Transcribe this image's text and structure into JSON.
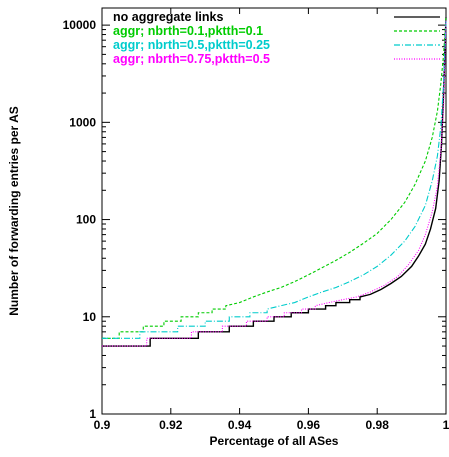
{
  "chart_data": {
    "type": "line",
    "title": "",
    "xlabel": "Percentage of all ASes",
    "ylabel": "Number of forwarding entries per AS",
    "xlim": [
      0.9,
      1.0
    ],
    "ylim": [
      1,
      15000
    ],
    "yscale": "log",
    "grid": false,
    "legend_position": "top-right",
    "x_ticks": [
      {
        "value": 0.9,
        "label": "0.9"
      },
      {
        "value": 0.92,
        "label": "0.92"
      },
      {
        "value": 0.94,
        "label": "0.94"
      },
      {
        "value": 0.96,
        "label": "0.96"
      },
      {
        "value": 0.98,
        "label": "0.98"
      },
      {
        "value": 1.0,
        "label": "1"
      }
    ],
    "y_ticks": [
      {
        "value": 1,
        "label": "1"
      },
      {
        "value": 10,
        "label": "10"
      },
      {
        "value": 100,
        "label": "100"
      },
      {
        "value": 1000,
        "label": "1000"
      },
      {
        "value": 10000,
        "label": "10000"
      }
    ],
    "series": [
      {
        "name": "no aggregate links",
        "color": "#000000",
        "dash": "",
        "points": [
          [
            0.9,
            5
          ],
          [
            0.914,
            5
          ],
          [
            0.914,
            6
          ],
          [
            0.928,
            6
          ],
          [
            0.928,
            7
          ],
          [
            0.937,
            7
          ],
          [
            0.937,
            8
          ],
          [
            0.944,
            8
          ],
          [
            0.944,
            9
          ],
          [
            0.95,
            9
          ],
          [
            0.95,
            10
          ],
          [
            0.955,
            10
          ],
          [
            0.955,
            11
          ],
          [
            0.96,
            11
          ],
          [
            0.96,
            12
          ],
          [
            0.965,
            12
          ],
          [
            0.965,
            13
          ],
          [
            0.968,
            13
          ],
          [
            0.968,
            14
          ],
          [
            0.972,
            14
          ],
          [
            0.972,
            15
          ],
          [
            0.975,
            15
          ],
          [
            0.975,
            16
          ],
          [
            0.978,
            17
          ],
          [
            0.981,
            19
          ],
          [
            0.984,
            22
          ],
          [
            0.987,
            26
          ],
          [
            0.99,
            33
          ],
          [
            0.992,
            42
          ],
          [
            0.994,
            56
          ],
          [
            0.9955,
            80
          ],
          [
            0.997,
            130
          ],
          [
            0.998,
            250
          ],
          [
            0.9987,
            600
          ],
          [
            0.9993,
            2000
          ],
          [
            0.9997,
            6000
          ],
          [
            1.0,
            12000
          ]
        ]
      },
      {
        "name": "aggr; nbrth=0.1,pktth=0.1",
        "color": "#00cc00",
        "dash": "3,2",
        "points": [
          [
            0.9,
            6
          ],
          [
            0.905,
            6
          ],
          [
            0.905,
            7
          ],
          [
            0.912,
            7
          ],
          [
            0.912,
            8
          ],
          [
            0.918,
            8
          ],
          [
            0.918,
            9
          ],
          [
            0.923,
            9
          ],
          [
            0.923,
            10
          ],
          [
            0.928,
            10
          ],
          [
            0.928,
            11
          ],
          [
            0.932,
            11
          ],
          [
            0.932,
            12
          ],
          [
            0.936,
            12
          ],
          [
            0.936,
            13
          ],
          [
            0.94,
            14
          ],
          [
            0.944,
            16
          ],
          [
            0.948,
            18
          ],
          [
            0.952,
            20
          ],
          [
            0.956,
            23
          ],
          [
            0.96,
            27
          ],
          [
            0.964,
            32
          ],
          [
            0.968,
            38
          ],
          [
            0.972,
            46
          ],
          [
            0.976,
            57
          ],
          [
            0.98,
            72
          ],
          [
            0.984,
            100
          ],
          [
            0.988,
            150
          ],
          [
            0.991,
            230
          ],
          [
            0.994,
            400
          ],
          [
            0.996,
            700
          ],
          [
            0.9975,
            1300
          ],
          [
            0.9985,
            2500
          ],
          [
            0.9993,
            5000
          ],
          [
            1.0,
            12000
          ]
        ]
      },
      {
        "name": "aggr; nbrth=0.5,pktth=0.25",
        "color": "#00cccc",
        "dash": "6,2,1,2",
        "points": [
          [
            0.9,
            6
          ],
          [
            0.911,
            6
          ],
          [
            0.911,
            7
          ],
          [
            0.922,
            7
          ],
          [
            0.922,
            8
          ],
          [
            0.93,
            8
          ],
          [
            0.93,
            9
          ],
          [
            0.937,
            9
          ],
          [
            0.937,
            10
          ],
          [
            0.943,
            10
          ],
          [
            0.943,
            11
          ],
          [
            0.948,
            11
          ],
          [
            0.948,
            12
          ],
          [
            0.952,
            13
          ],
          [
            0.956,
            14
          ],
          [
            0.96,
            16
          ],
          [
            0.964,
            18
          ],
          [
            0.968,
            20
          ],
          [
            0.972,
            23
          ],
          [
            0.976,
            27
          ],
          [
            0.98,
            33
          ],
          [
            0.984,
            43
          ],
          [
            0.988,
            60
          ],
          [
            0.991,
            85
          ],
          [
            0.994,
            140
          ],
          [
            0.996,
            250
          ],
          [
            0.9975,
            450
          ],
          [
            0.9985,
            900
          ],
          [
            0.9993,
            2500
          ],
          [
            1.0,
            11000
          ]
        ]
      },
      {
        "name": "aggr; nbrth=0.75,pktth=0.5",
        "color": "#ff00ff",
        "dash": "1,1.5",
        "points": [
          [
            0.9,
            5
          ],
          [
            0.913,
            5
          ],
          [
            0.913,
            6
          ],
          [
            0.926,
            6
          ],
          [
            0.926,
            7
          ],
          [
            0.935,
            7
          ],
          [
            0.935,
            8
          ],
          [
            0.942,
            8
          ],
          [
            0.942,
            9
          ],
          [
            0.948,
            9
          ],
          [
            0.948,
            10
          ],
          [
            0.953,
            10
          ],
          [
            0.953,
            11
          ],
          [
            0.958,
            11
          ],
          [
            0.958,
            12
          ],
          [
            0.962,
            12
          ],
          [
            0.962,
            13
          ],
          [
            0.966,
            14
          ],
          [
            0.97,
            15
          ],
          [
            0.974,
            16
          ],
          [
            0.978,
            18
          ],
          [
            0.982,
            21
          ],
          [
            0.986,
            26
          ],
          [
            0.989,
            34
          ],
          [
            0.992,
            48
          ],
          [
            0.994,
            70
          ],
          [
            0.996,
            120
          ],
          [
            0.9975,
            220
          ],
          [
            0.9985,
            500
          ],
          [
            0.9993,
            1500
          ],
          [
            1.0,
            11500
          ]
        ]
      }
    ]
  }
}
